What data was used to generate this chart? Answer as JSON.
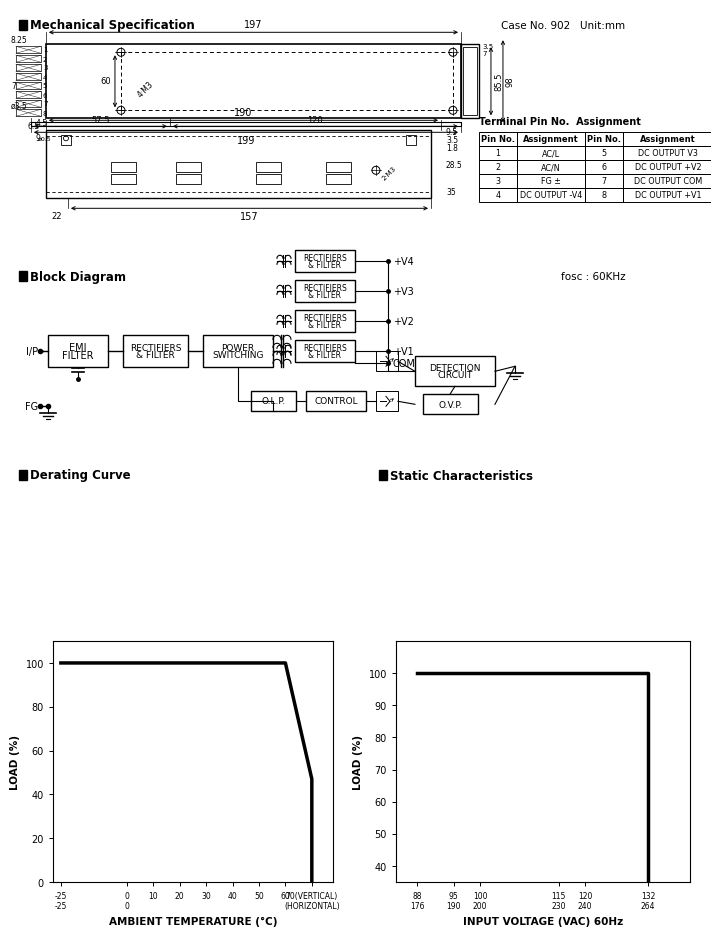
{
  "title": "Mechanical Specification",
  "case_info": "Case No. 902   Unit:mm",
  "bg_color": "#ffffff",
  "derating_curve": {
    "x": [
      -25,
      0,
      50,
      60,
      70,
      70
    ],
    "y": [
      100,
      100,
      100,
      100,
      47,
      0
    ],
    "xlim": [
      -28,
      78
    ],
    "ylim": [
      0,
      110
    ],
    "xticks": [
      -25,
      0,
      10,
      20,
      30,
      40,
      50,
      60,
      70
    ],
    "yticks": [
      0,
      20,
      40,
      60,
      80,
      100
    ],
    "xlabel": "AMBIENT TEMPERATURE (°C)",
    "ylabel": "LOAD (%)"
  },
  "static_curve": {
    "x": [
      88,
      120,
      132,
      132
    ],
    "y": [
      100,
      100,
      100,
      35
    ],
    "xlim": [
      84,
      140
    ],
    "ylim": [
      35,
      110
    ],
    "xticks": [
      88,
      95,
      100,
      115,
      120,
      132
    ],
    "yticks": [
      40,
      50,
      60,
      70,
      80,
      90,
      100
    ],
    "xlabel": "INPUT VOLTAGE (VAC) 60Hz",
    "ylabel": "LOAD (%)"
  },
  "terminal_table": {
    "headers": [
      "Pin No.",
      "Assignment",
      "Pin No.",
      "Assignment"
    ],
    "rows": [
      [
        "1",
        "AC/L",
        "5",
        "DC OUTPUT V3"
      ],
      [
        "2",
        "AC/N",
        "6",
        "DC OUTPUT +V2"
      ],
      [
        "3",
        "FG ±",
        "7",
        "DC OUTPUT COM"
      ],
      [
        "4",
        "DC OUTPUT -V4",
        "8",
        "DC OUTPUT +V1"
      ]
    ],
    "title": "Terminal Pin No.  Assignment"
  }
}
